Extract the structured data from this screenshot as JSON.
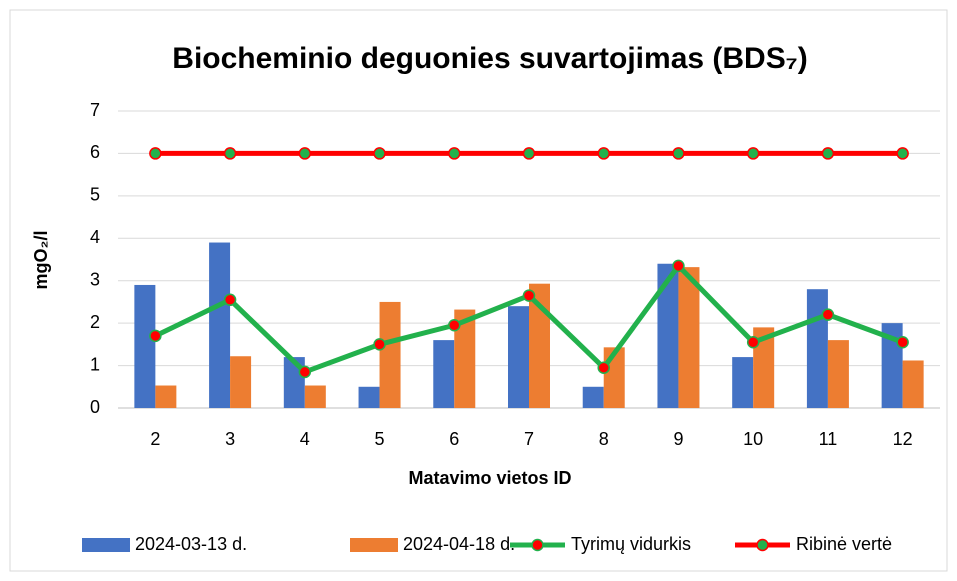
{
  "chart_data": {
    "type": "bar",
    "title": "Biocheminio deguonies suvartojimas (BDS₇)",
    "x_label": "Matavimo vietos ID",
    "y_label": "mgO₂/l",
    "categories": [
      "2",
      "3",
      "4",
      "5",
      "6",
      "7",
      "8",
      "9",
      "10",
      "11",
      "12"
    ],
    "ylim": [
      0,
      7
    ],
    "yticks": [
      0,
      1,
      2,
      3,
      4,
      5,
      6,
      7
    ],
    "grid": true,
    "legend": "bottom",
    "series": [
      {
        "name": "2024-03-13 d.",
        "type": "bar",
        "color": "#4472c4",
        "values": [
          2.9,
          3.9,
          1.2,
          0.5,
          1.6,
          2.4,
          0.5,
          3.4,
          1.2,
          2.8,
          2.0
        ]
      },
      {
        "name": "2024-04-18 d.",
        "type": "bar",
        "color": "#ed7d31",
        "values": [
          0.53,
          1.22,
          0.53,
          2.5,
          2.32,
          2.93,
          1.43,
          3.32,
          1.9,
          1.6,
          1.12
        ]
      },
      {
        "name": "Tyrimų vidurkis",
        "type": "line",
        "color": "#22b14c",
        "marker_color": "#ff0000",
        "values": [
          1.7,
          2.55,
          0.85,
          1.5,
          1.95,
          2.65,
          0.95,
          3.35,
          1.55,
          2.2,
          1.55
        ]
      },
      {
        "name": "Ribinė vertė",
        "type": "line",
        "color": "#ff0000",
        "marker_color": "#22b14c",
        "values": [
          6,
          6,
          6,
          6,
          6,
          6,
          6,
          6,
          6,
          6,
          6
        ]
      }
    ]
  }
}
